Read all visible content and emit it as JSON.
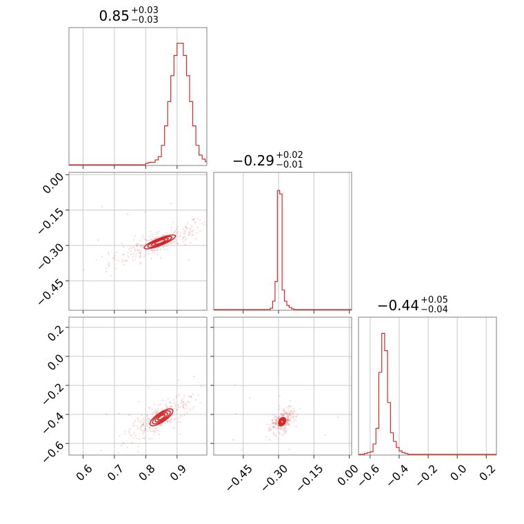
{
  "chart_data": {
    "type": "corner",
    "color": "#d62728",
    "grid": true,
    "parameters": [
      {
        "median_label": "0.85",
        "plus_label": "+0.03",
        "minus_label": "−0.03",
        "range": [
          0.555,
          0.995
        ],
        "ticks": [
          0.6,
          0.7,
          0.8,
          0.9
        ],
        "tick_labels": [
          "0.6",
          "0.7",
          "0.8",
          "0.9"
        ],
        "hist": {
          "bin_edges_start": 0.8,
          "bin_width": 0.01,
          "counts": [
            2,
            3,
            3,
            6,
            10,
            24,
            48,
            78,
            110,
            135,
            150,
            150,
            135,
            110,
            78,
            48,
            24,
            12,
            7,
            4,
            2
          ]
        },
        "hist_max": 160
      },
      {
        "median_label": "−0.29",
        "plus_label": "+0.02",
        "minus_label": "−0.01",
        "range": [
          -0.575,
          0.01
        ],
        "ticks": [
          0.0,
          -0.15,
          -0.3,
          -0.45
        ],
        "tick_labels": [
          "0.00",
          "−0.15",
          "−0.30",
          "−0.45"
        ],
        "hist": {
          "bin_edges_start": -0.335,
          "bin_width": 0.01,
          "counts": [
            2,
            12,
            40,
            170,
            165,
            28,
            12,
            6,
            3,
            1
          ]
        },
        "hist_max": 185
      },
      {
        "median_label": "−0.44",
        "plus_label": "+0.05",
        "minus_label": "−0.04",
        "range": [
          -0.68,
          0.27
        ],
        "ticks": [
          -0.6,
          -0.4,
          -0.2,
          0.0,
          0.2
        ],
        "tick_labels": [
          "−0.6",
          "−0.4",
          "−0.2",
          "0.0",
          "0.2"
        ],
        "tick_labels_y": [
          "−0.6",
          "−0.4",
          "−0.2",
          "0.0",
          "0.2"
        ],
        "hist": {
          "bin_edges_start": -0.64,
          "bin_width": 0.02,
          "counts": [
            1,
            2,
            3,
            12,
            30,
            95,
            140,
            120,
            60,
            25,
            15,
            8,
            4,
            2,
            1
          ]
        },
        "hist_max": 150
      }
    ],
    "pairs": [
      {
        "row": 1,
        "col": 0,
        "center": [
          0.845,
          -0.285
        ],
        "slope": 0.52,
        "length": 0.17,
        "width": 0.018,
        "contour_levels": [
          0.35,
          0.6,
          0.85,
          1.1
        ]
      },
      {
        "row": 2,
        "col": 0,
        "center": [
          0.85,
          -0.42
        ],
        "slope": 1.45,
        "length": 0.19,
        "width": 0.022,
        "contour_levels": [
          0.35,
          0.6,
          0.85,
          1.1
        ]
      },
      {
        "row": 2,
        "col": 1,
        "center": [
          -0.285,
          -0.45
        ],
        "slope": 2.6,
        "length": 0.085,
        "width": 0.018,
        "contour_levels": [
          0.35,
          0.6,
          0.85,
          1.1
        ]
      }
    ]
  }
}
